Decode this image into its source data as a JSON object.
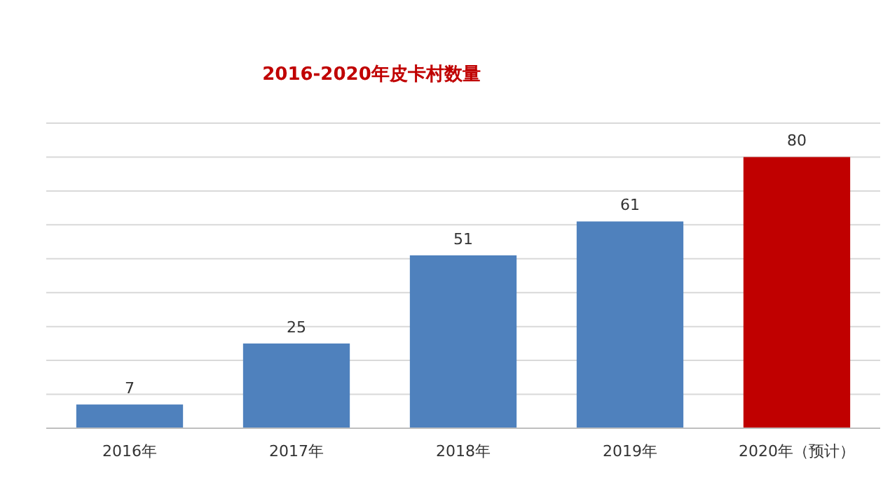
{
  "chart_data": {
    "type": "bar",
    "title": "2016-2020年皮卡村数量",
    "categories": [
      "2016年",
      "2017年",
      "2018年",
      "2019年",
      "2020年（预计）"
    ],
    "values": [
      7,
      25,
      51,
      61,
      80
    ],
    "colors": [
      "#4f81bd",
      "#4f81bd",
      "#4f81bd",
      "#4f81bd",
      "#c00000"
    ],
    "ylim": [
      0,
      90
    ],
    "yticks": [
      {
        "value": 0,
        "label": null
      },
      {
        "value": 10,
        "label": null
      },
      {
        "value": 20,
        "label": null
      },
      {
        "value": 30,
        "label": null
      },
      {
        "value": 40,
        "label": null
      },
      {
        "value": 50,
        "label": null
      },
      {
        "value": 60,
        "label": null
      },
      {
        "value": 70,
        "label": null
      },
      {
        "value": 80,
        "label": null
      },
      {
        "value": 90,
        "label": null
      }
    ],
    "grid": "y",
    "data_labels": true,
    "tick_labels": "x"
  }
}
